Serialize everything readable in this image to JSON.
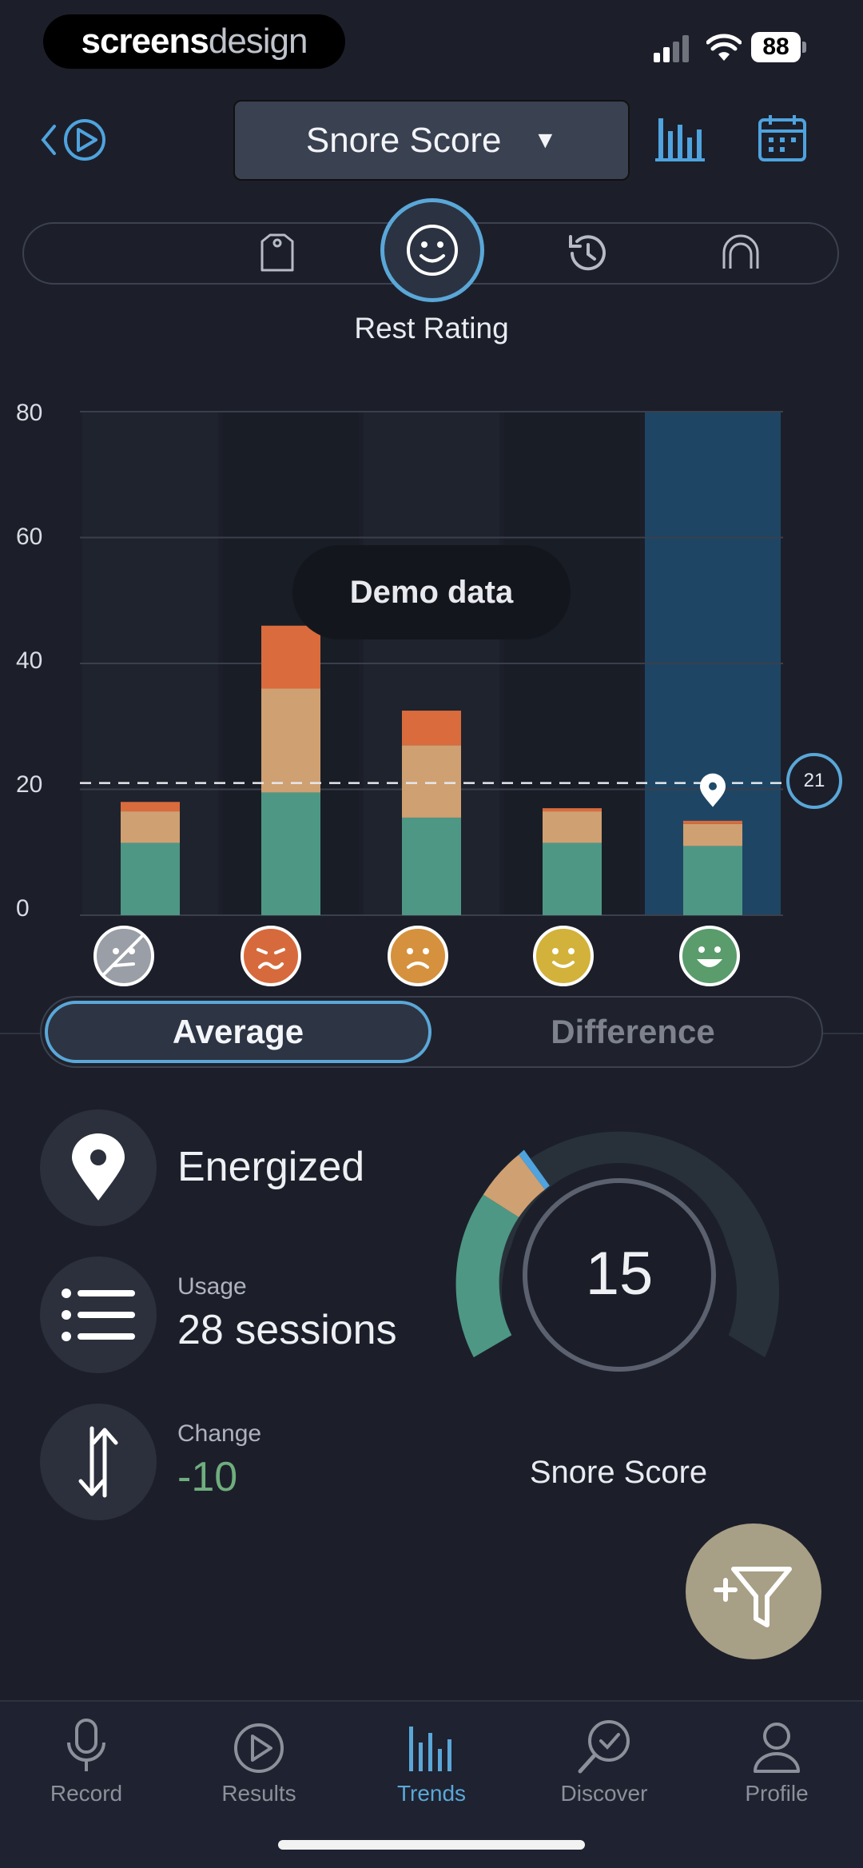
{
  "status_bar": {
    "brand_bold": "screens",
    "brand_light": "design",
    "battery": "88"
  },
  "header": {
    "metric_selector": "Snore Score",
    "metric_caret": "▼"
  },
  "factor_bar": {
    "selected_label": "Rest Rating"
  },
  "chart_data": {
    "type": "bar",
    "stacked": true,
    "categories": [
      "No rating",
      "Terrible",
      "Bad",
      "OK",
      "Energized"
    ],
    "series": [
      {
        "color": "#4e9785",
        "values": [
          11.5,
          19.5,
          15.5,
          11.5,
          11
        ]
      },
      {
        "color": "#cfa072",
        "values": [
          5,
          16.5,
          11.5,
          5,
          3.5
        ]
      },
      {
        "color": "#d96b3d",
        "values": [
          1.5,
          10,
          5.5,
          0.5,
          0.5
        ]
      }
    ],
    "ylim": [
      0,
      80
    ],
    "yticks": [
      "80",
      "60",
      "40",
      "20",
      "0"
    ],
    "reference_line": 21,
    "reference_label": "21",
    "highlighted_category": "Energized",
    "overlay_text": "Demo data",
    "grid": true
  },
  "view_toggle": {
    "active": "Average",
    "inactive": "Difference"
  },
  "stats": {
    "selection": "Energized",
    "usage_label": "Usage",
    "usage_value": "28 sessions",
    "change_label": "Change",
    "change_value": "-10",
    "change_color": "#6fae7e"
  },
  "gauge": {
    "value": "15",
    "label": "Snore Score",
    "max": 100
  },
  "tabs": [
    {
      "label": "Record",
      "icon": "microphone-icon"
    },
    {
      "label": "Results",
      "icon": "play-circle-icon"
    },
    {
      "label": "Trends",
      "icon": "bar-chart-icon",
      "active": true
    },
    {
      "label": "Discover",
      "icon": "magnifier-check-icon"
    },
    {
      "label": "Profile",
      "icon": "person-icon"
    }
  ],
  "colors": {
    "accent": "#5aa7d8",
    "background": "#1c1f2a",
    "filter_button": "#a79f86"
  }
}
